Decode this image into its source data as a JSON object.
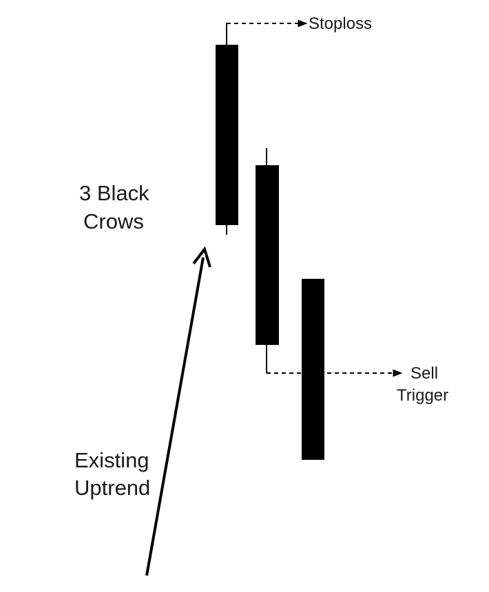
{
  "colors": {
    "background": "#ffffff",
    "candle_body": "#000000",
    "line": "#000000",
    "text": "#1a1a1a"
  },
  "pattern_label": [
    "3 Black",
    "Crows"
  ],
  "trend_label": [
    "Existing",
    "Uptrend"
  ],
  "stoploss_label": "Stoploss",
  "trigger_label": [
    "Sell",
    "Trigger"
  ],
  "icons": {
    "uptrend_arrow": "arrow-up-icon",
    "dashed_pointer": "dashed-arrow-right-icon"
  }
}
